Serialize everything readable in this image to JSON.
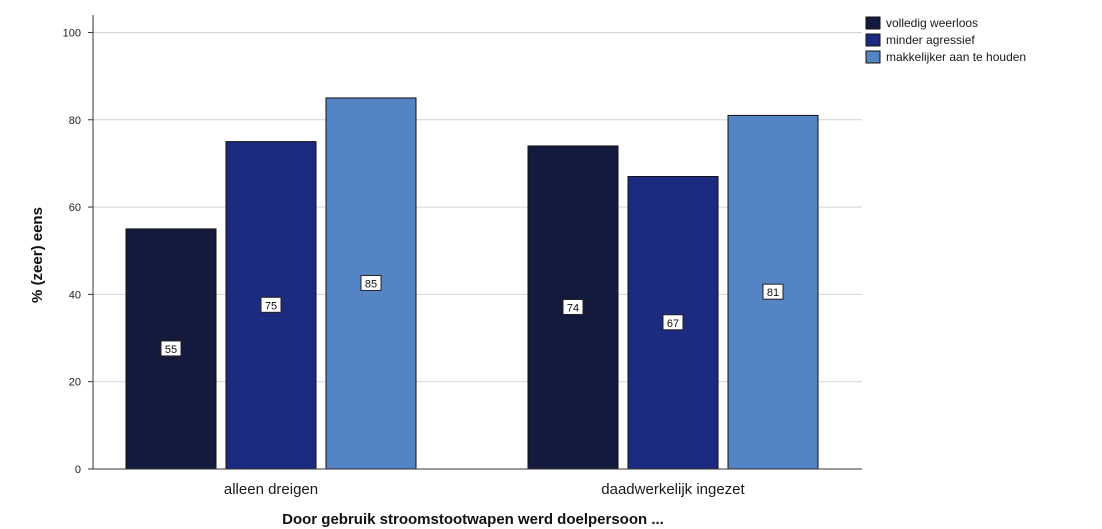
{
  "chart_data": {
    "type": "bar",
    "categories": [
      "alleen dreigen",
      "daadwerkelijk ingezet"
    ],
    "series": [
      {
        "name": "volledig weerloos",
        "values": [
          55,
          74
        ],
        "color": "#141a3d"
      },
      {
        "name": "minder agressief",
        "values": [
          75,
          67
        ],
        "color": "#1c2a80"
      },
      {
        "name": "makkelijker aan te houden",
        "values": [
          85,
          81
        ],
        "color": "#5584c4"
      }
    ],
    "xlabel": "Door gebruik stroomstootwapen werd doelpersoon ...",
    "ylabel": "% (zeer) eens",
    "ylim": [
      0,
      100
    ],
    "yticks": [
      0,
      20,
      40,
      60,
      80,
      100
    ],
    "grid": true,
    "legend": "top-right",
    "data_labels": true
  }
}
